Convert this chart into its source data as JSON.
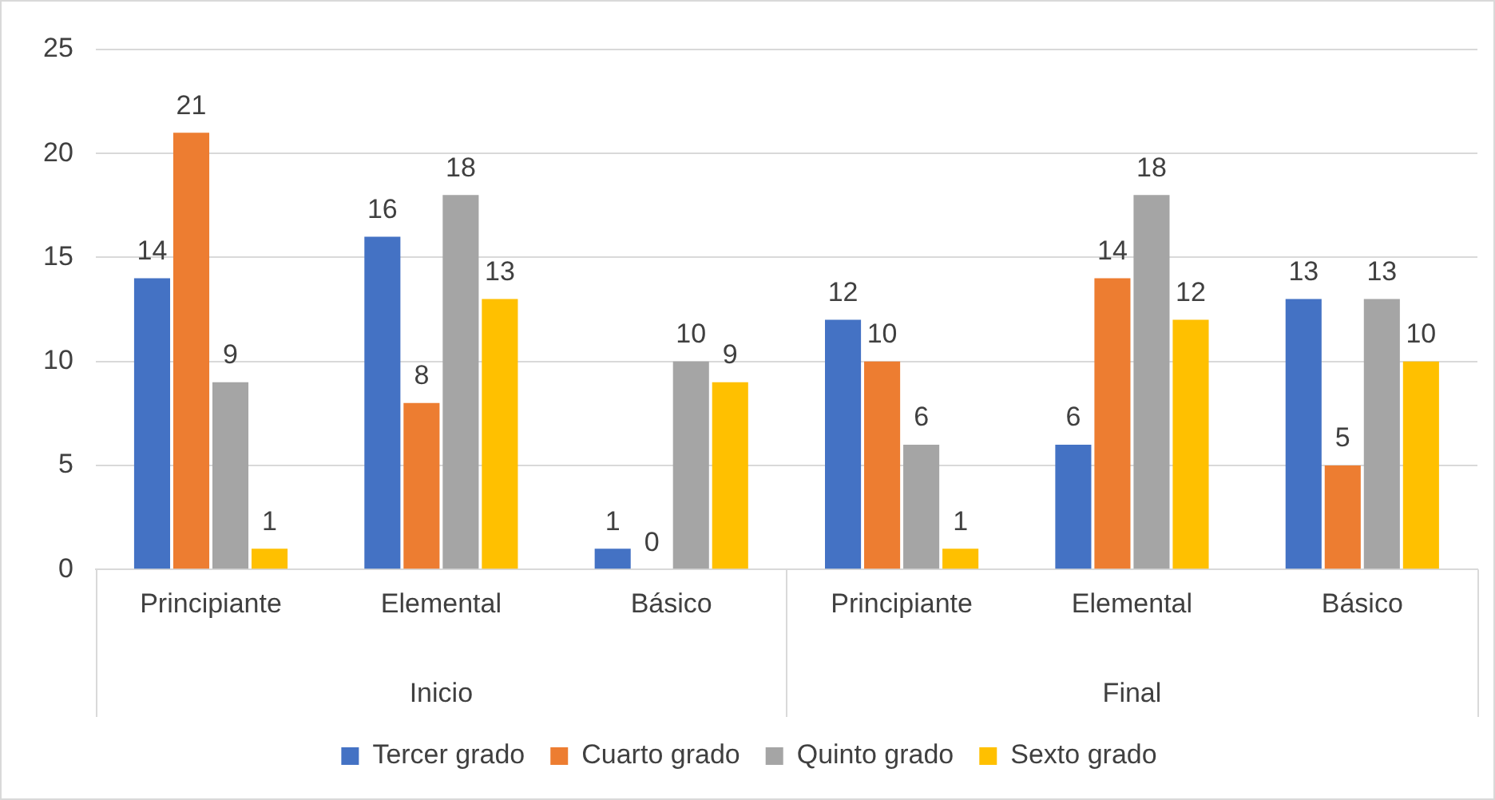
{
  "chart_data": {
    "type": "bar",
    "categories": [
      "Principiante",
      "Elemental",
      "Básico",
      "Principiante",
      "Elemental",
      "Básico"
    ],
    "series": [
      {
        "name": "Tercer grado",
        "color": "#4472c4",
        "values": [
          14,
          16,
          1,
          12,
          6,
          13
        ]
      },
      {
        "name": "Cuarto grado",
        "color": "#ed7d31",
        "values": [
          21,
          8,
          0,
          10,
          14,
          5
        ]
      },
      {
        "name": "Quinto grado",
        "color": "#a5a5a5",
        "values": [
          9,
          18,
          10,
          6,
          18,
          13
        ]
      },
      {
        "name": "Sexto grado",
        "color": "#ffc000",
        "values": [
          1,
          13,
          9,
          1,
          12,
          10
        ]
      }
    ],
    "annotations": [
      "Inicio",
      "Final"
    ],
    "ylim": [
      0,
      25
    ],
    "yticks": [
      0,
      5,
      10,
      15,
      20,
      25
    ],
    "grid": "y",
    "legend": "bottom",
    "data_labels": true
  }
}
